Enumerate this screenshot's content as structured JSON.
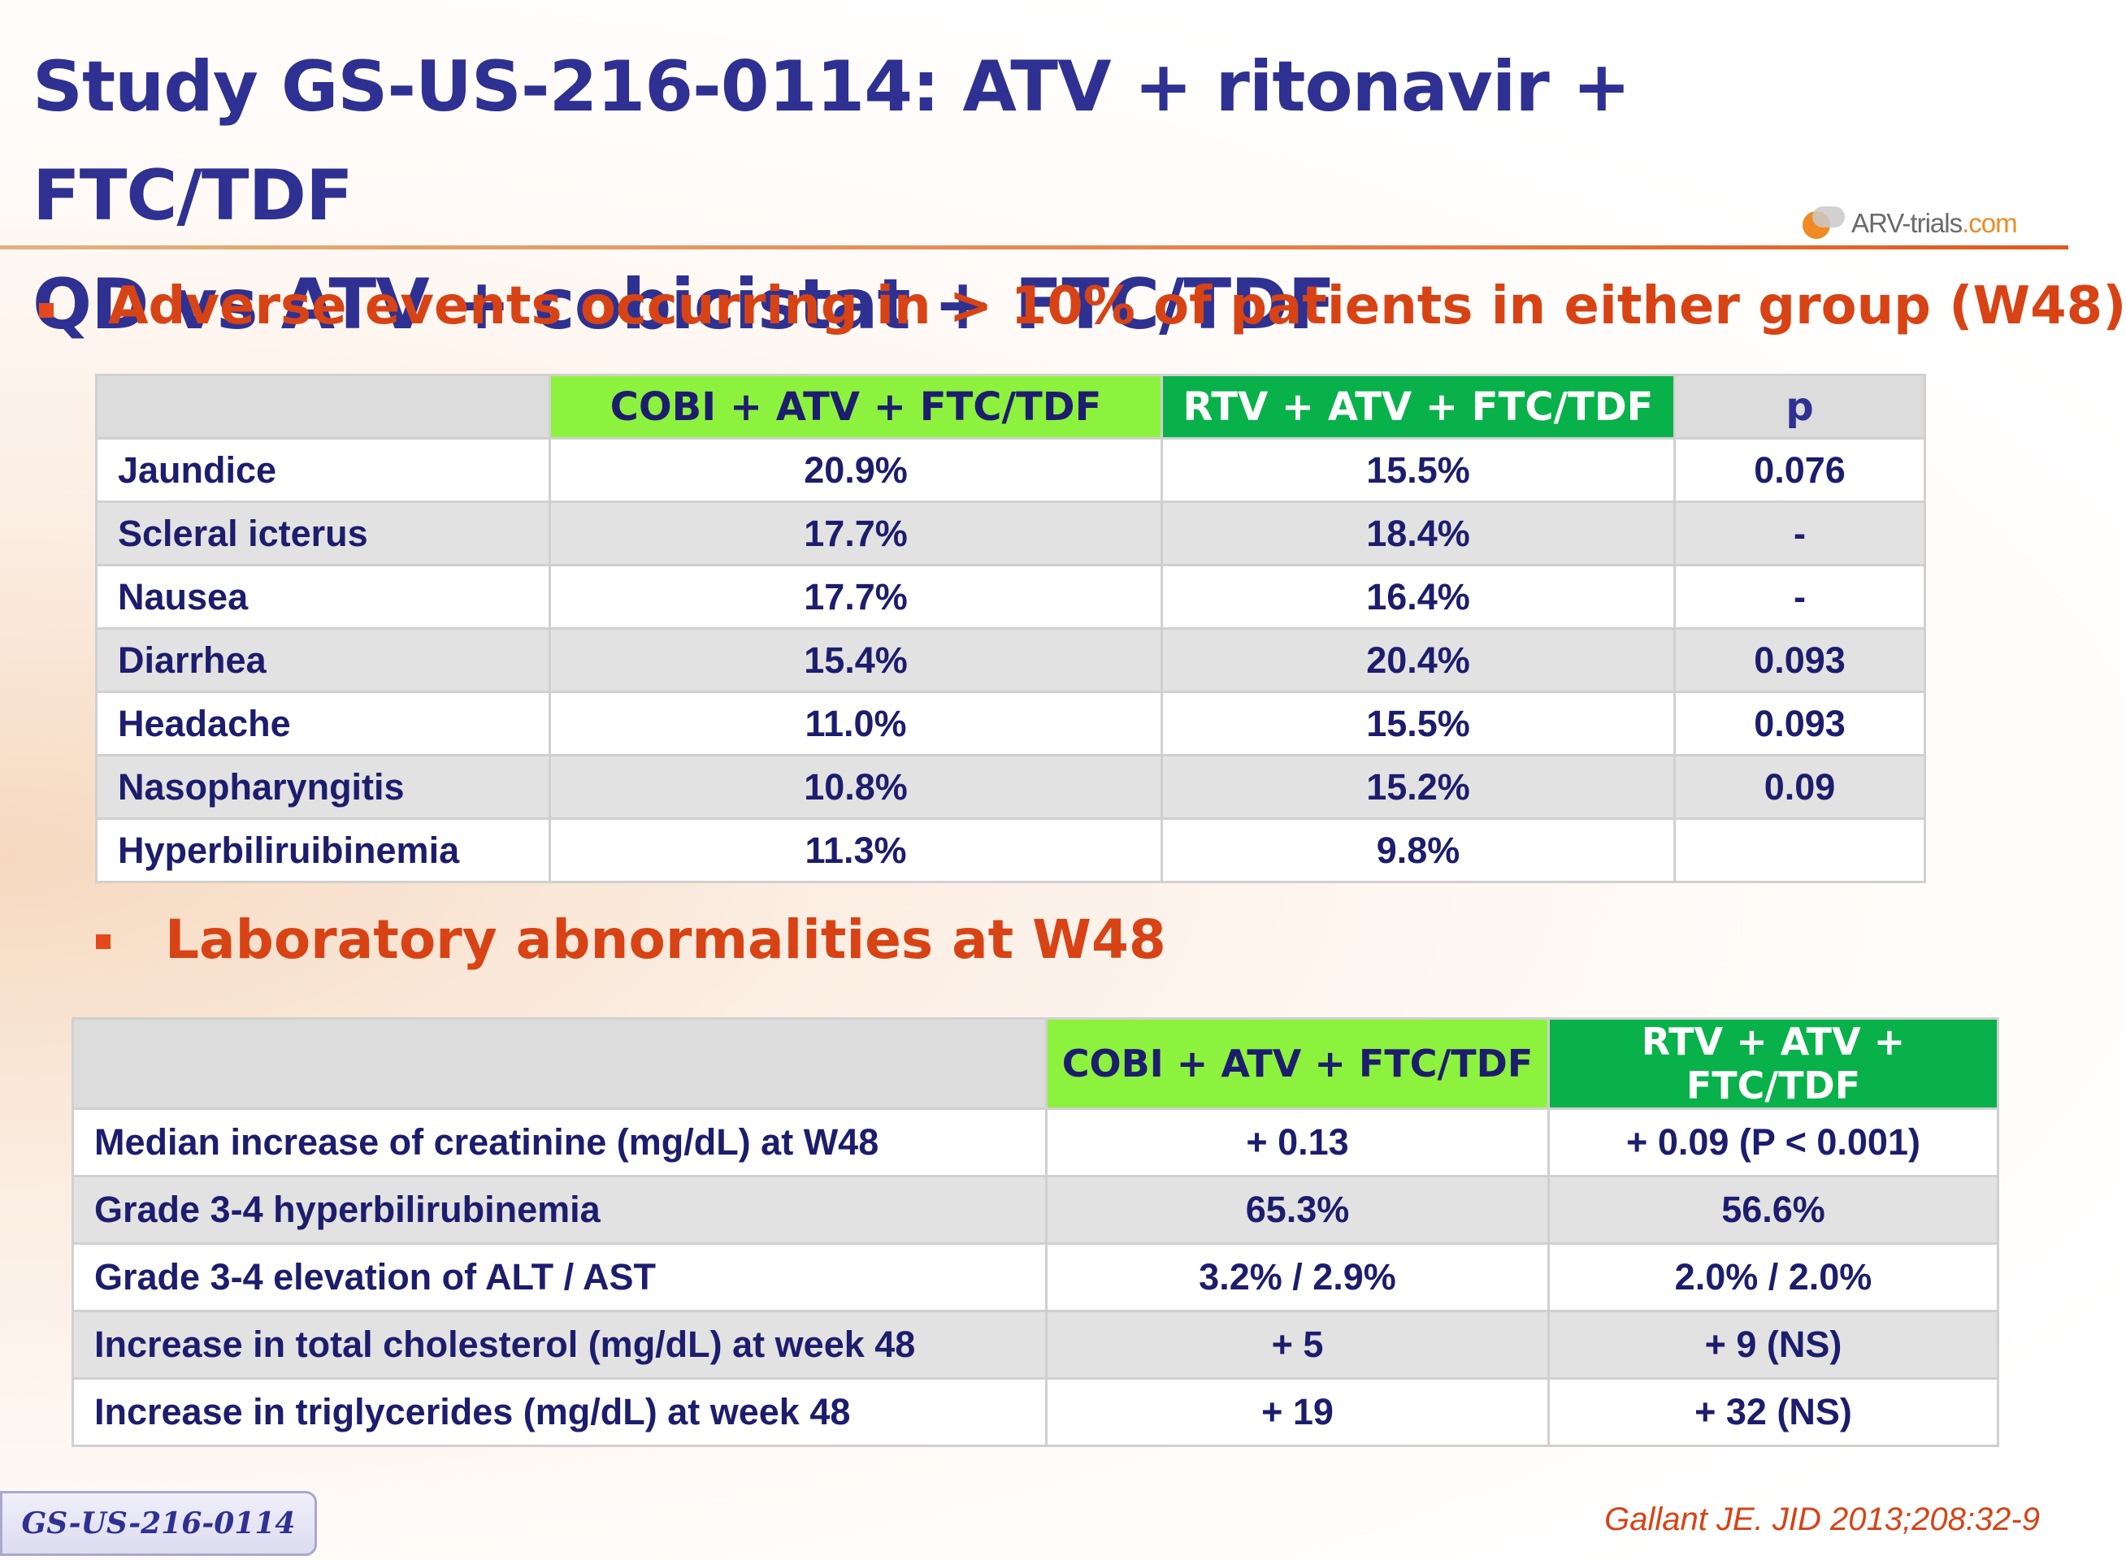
{
  "slide": {
    "title_line1": "Study GS-US-216-0114: ATV + ritonavir + FTC/TDF",
    "title_line2": "QD vs ATV + cobicistat + FTC/TDF",
    "logo": {
      "brand": "ARV-trials",
      "suffix": ".com",
      "icon": "pill-logo-icon"
    },
    "accent_color": "#d84315",
    "title_color": "#2e3192"
  },
  "adverse_events": {
    "heading": "Adverse events occurring in > 10% of patients in either group (W48)",
    "columns": [
      "",
      "COBI + ATV + FTC/TDF",
      "RTV + ATV + FTC/TDF",
      "p"
    ],
    "rows": [
      {
        "label": "Jaundice",
        "cobi": "20.9%",
        "rtv": "15.5%",
        "p": "0.076"
      },
      {
        "label": "Scleral icterus",
        "cobi": "17.7%",
        "rtv": "18.4%",
        "p": "-"
      },
      {
        "label": "Nausea",
        "cobi": "17.7%",
        "rtv": "16.4%",
        "p": "-"
      },
      {
        "label": "Diarrhea",
        "cobi": "15.4%",
        "rtv": "20.4%",
        "p": "0.093"
      },
      {
        "label": "Headache",
        "cobi": "11.0%",
        "rtv": "15.5%",
        "p": "0.093"
      },
      {
        "label": "Nasopharyngitis",
        "cobi": "10.8%",
        "rtv": "15.2%",
        "p": "0.09"
      },
      {
        "label": "Hyperbiliruibinemia",
        "cobi": "11.3%",
        "rtv": "9.8%",
        "p": ""
      }
    ]
  },
  "lab_abnormalities": {
    "heading": "Laboratory abnormalities at W48",
    "columns": [
      "",
      "COBI + ATV + FTC/TDF",
      "RTV + ATV + FTC/TDF"
    ],
    "rows": [
      {
        "label": "Median increase of creatinine (mg/dL) at W48",
        "cobi": "+ 0.13",
        "rtv": "+ 0.09 (P < 0.001)"
      },
      {
        "label": "Grade 3-4 hyperbilirubinemia",
        "cobi": "65.3%",
        "rtv": "56.6%"
      },
      {
        "label": "Grade 3-4 elevation of ALT / AST",
        "cobi": "3.2% / 2.9%",
        "rtv": "2.0% / 2.0%"
      },
      {
        "label": "Increase in total cholesterol (mg/dL) at week 48",
        "cobi": "+ 5",
        "rtv": "+ 9 (NS)"
      },
      {
        "label": "Increase in triglycerides (mg/dL) at week 48",
        "cobi": "+ 19",
        "rtv": "+ 32 (NS)"
      }
    ]
  },
  "footer": {
    "study_badge": "GS-US-216-0114",
    "citation": "Gallant JE. JID 2013;208:32-9"
  }
}
